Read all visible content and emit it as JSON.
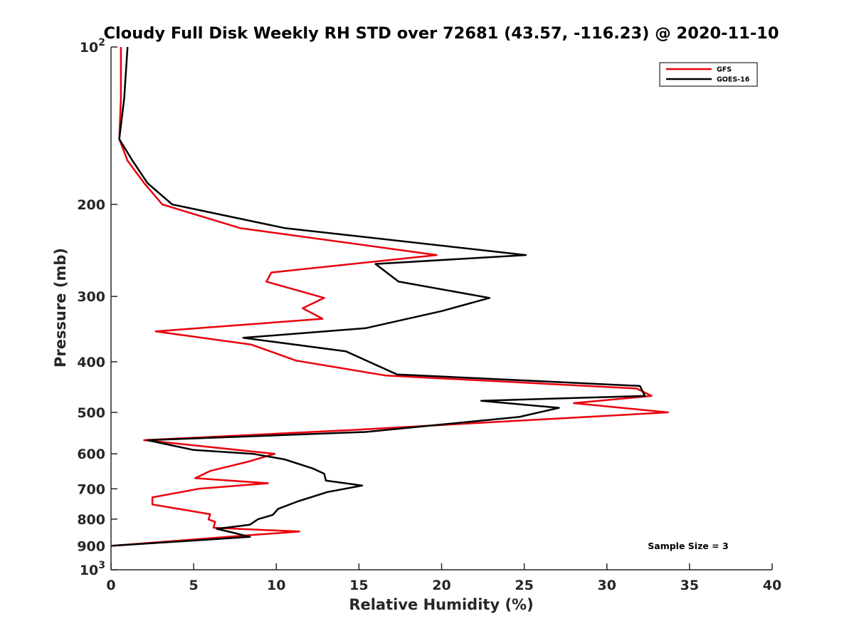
{
  "chart_data": {
    "type": "line",
    "title": "Cloudy Full Disk Weekly RH STD over 72681 (43.57, -116.23) @ 2020-11-10",
    "xlabel": "Relative Humidity (%)",
    "ylabel": "Pressure (mb)",
    "xlim": [
      0,
      40
    ],
    "ylim": [
      100,
      1000
    ],
    "y_scale": "log",
    "y_reversed": true,
    "grid": false,
    "legend_position": "top-right",
    "x_ticks": [
      "0",
      "5",
      "10",
      "15",
      "20",
      "25",
      "30",
      "35",
      "40"
    ],
    "y_ticks": [
      {
        "value": 100,
        "base": "10",
        "exp": "2"
      },
      {
        "value": 200,
        "label": "200"
      },
      {
        "value": 300,
        "label": "300"
      },
      {
        "value": 400,
        "label": "400"
      },
      {
        "value": 500,
        "label": "500"
      },
      {
        "value": 600,
        "label": "600"
      },
      {
        "value": 700,
        "label": "700"
      },
      {
        "value": 800,
        "label": "800"
      },
      {
        "value": 900,
        "label": "900"
      },
      {
        "value": 1000,
        "base": "10",
        "exp": "3"
      }
    ],
    "series": [
      {
        "name": "GFS",
        "color": "#e8000b",
        "points": [
          [
            0.6,
            100
          ],
          [
            0.6,
            125
          ],
          [
            0.5,
            150
          ],
          [
            1.0,
            165
          ],
          [
            2.0,
            182
          ],
          [
            3.1,
            200
          ],
          [
            7.8,
            222
          ],
          [
            19.7,
            250
          ],
          [
            9.7,
            270
          ],
          [
            9.4,
            281
          ],
          [
            12.9,
            302
          ],
          [
            11.6,
            316
          ],
          [
            12.8,
            331
          ],
          [
            2.7,
            350
          ],
          [
            8.5,
            371
          ],
          [
            11.2,
            398
          ],
          [
            16.6,
            425
          ],
          [
            31.8,
            450
          ],
          [
            32.7,
            465
          ],
          [
            28.0,
            480
          ],
          [
            33.7,
            500
          ],
          [
            14.7,
            540
          ],
          [
            2.0,
            565
          ],
          [
            9.9,
            600
          ],
          [
            8.4,
            620
          ],
          [
            6.0,
            647
          ],
          [
            5.1,
            668
          ],
          [
            9.5,
            683
          ],
          [
            5.3,
            700
          ],
          [
            2.5,
            727
          ],
          [
            2.5,
            750
          ],
          [
            6.0,
            783
          ],
          [
            5.9,
            801
          ],
          [
            6.3,
            810
          ],
          [
            6.2,
            831
          ],
          [
            11.4,
            845
          ],
          [
            8.1,
            860
          ],
          [
            0,
            900
          ]
        ]
      },
      {
        "name": "GOES-16",
        "color": "#000000",
        "points": [
          [
            1.0,
            100
          ],
          [
            0.8,
            125
          ],
          [
            0.5,
            150
          ],
          [
            1.3,
            165
          ],
          [
            2.2,
            182
          ],
          [
            3.7,
            200
          ],
          [
            10.5,
            222
          ],
          [
            25.1,
            250
          ],
          [
            16.0,
            260
          ],
          [
            17.4,
            281
          ],
          [
            22.9,
            302
          ],
          [
            20.0,
            320
          ],
          [
            15.4,
            345
          ],
          [
            8.0,
            360
          ],
          [
            14.2,
            382
          ],
          [
            17.3,
            423
          ],
          [
            32.0,
            445
          ],
          [
            32.3,
            465
          ],
          [
            22.4,
            475
          ],
          [
            27.1,
            490
          ],
          [
            24.7,
            510
          ],
          [
            15.4,
            545
          ],
          [
            2.2,
            565
          ],
          [
            5.0,
            590
          ],
          [
            8.6,
            600
          ],
          [
            10.5,
            615
          ],
          [
            12.2,
            640
          ],
          [
            12.9,
            655
          ],
          [
            13.0,
            675
          ],
          [
            15.2,
            690
          ],
          [
            13.1,
            710
          ],
          [
            11.3,
            740
          ],
          [
            10.1,
            765
          ],
          [
            9.8,
            785
          ],
          [
            8.9,
            800
          ],
          [
            8.4,
            820
          ],
          [
            6.4,
            835
          ],
          [
            7.3,
            848
          ],
          [
            8.4,
            865
          ],
          [
            0,
            900
          ]
        ]
      }
    ],
    "annotations": [
      "Sample Size = 3"
    ]
  }
}
